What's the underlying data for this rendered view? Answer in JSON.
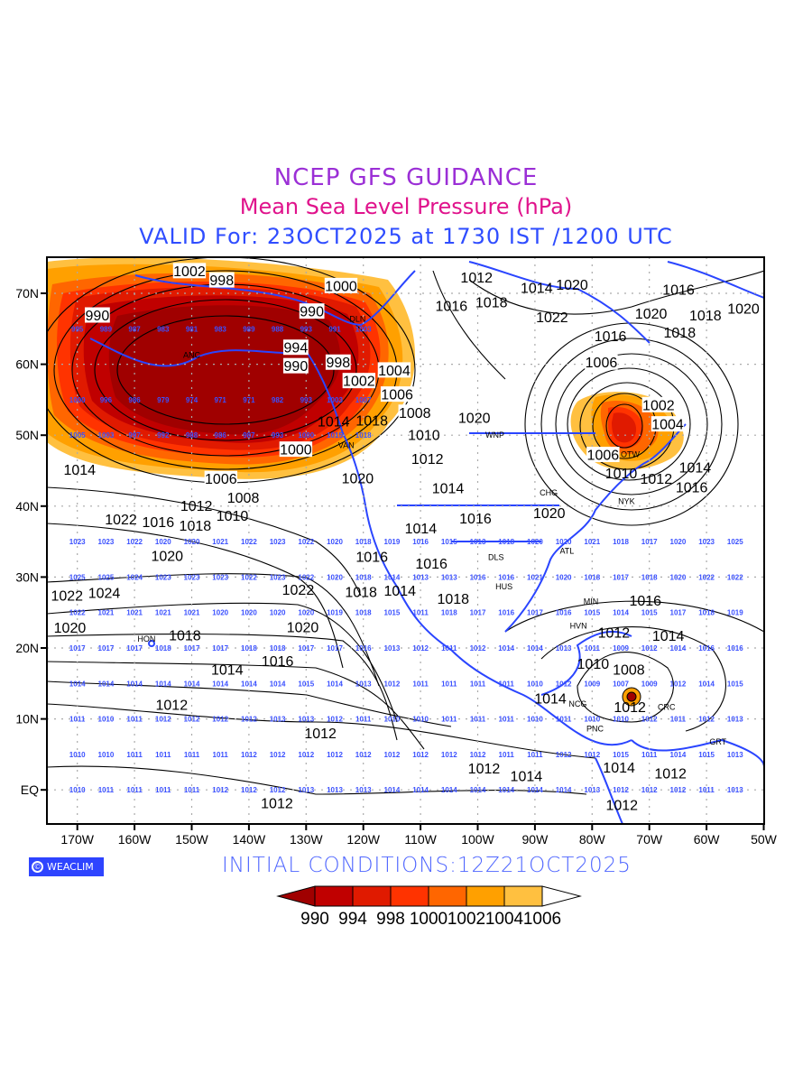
{
  "header": {
    "title": "NCEP GFS GUIDANCE",
    "subtitle": "Mean Sea Level Pressure (hPa)",
    "valid": "VALID For: 23OCT2025 at 1730 IST /1200 UTC"
  },
  "footer": {
    "logo": "WEACLIM",
    "copyright_symbol": "©",
    "initial": "INITIAL  CONDITIONS:12Z21OCT2025"
  },
  "legend": {
    "labels": [
      "990",
      "994",
      "998",
      "1000",
      "1002",
      "1004",
      "1006"
    ],
    "colors": [
      "#a00000",
      "#c00000",
      "#e01a00",
      "#ff3300",
      "#ff6600",
      "#ffa000",
      "#ffc040",
      "#ffffff"
    ]
  },
  "axes": {
    "lon_labels": [
      "170W",
      "160W",
      "150W",
      "140W",
      "130W",
      "120W",
      "110W",
      "100W",
      "90W",
      "80W",
      "70W",
      "60W",
      "50W"
    ],
    "lon_values": [
      -170,
      -160,
      -150,
      -140,
      -130,
      -120,
      -110,
      -100,
      -90,
      -80,
      -70,
      -60,
      -50
    ],
    "lat_labels": [
      "70N",
      "60N",
      "50N",
      "40N",
      "30N",
      "20N",
      "10N",
      "EQ"
    ],
    "lat_values": [
      70,
      60,
      50,
      40,
      30,
      20,
      10,
      0
    ]
  },
  "stations": [
    {
      "name": "ANC",
      "lon": -150,
      "lat": 61.3
    },
    {
      "name": "DLN",
      "lon": -121,
      "lat": 65.6
    },
    {
      "name": "VAN",
      "lon": -123,
      "lat": 49.3
    },
    {
      "name": "WNP",
      "lon": -97,
      "lat": 50
    },
    {
      "name": "OTW",
      "lon": -75.7,
      "lat": 45.4
    },
    {
      "name": "NYK",
      "lon": -74,
      "lat": 40.7
    },
    {
      "name": "CHG",
      "lon": -87.6,
      "lat": 41.9
    },
    {
      "name": "DLS",
      "lon": -96.8,
      "lat": 32.8
    },
    {
      "name": "HUS",
      "lon": -95.4,
      "lat": 29.8
    },
    {
      "name": "ATL",
      "lon": -84.4,
      "lat": 33.7
    },
    {
      "name": "MIN",
      "lon": -80.2,
      "lat": 25.8
    },
    {
      "name": "HVN",
      "lon": -82.4,
      "lat": 23.1
    },
    {
      "name": "HON",
      "lon": -157.9,
      "lat": 21.3
    },
    {
      "name": "NCG",
      "lon": -86.3,
      "lat": 12.1
    },
    {
      "name": "PNC",
      "lon": -79.5,
      "lat": 9
    },
    {
      "name": "CRC",
      "lon": -67,
      "lat": 10.5
    },
    {
      "name": "GRT",
      "lon": -58,
      "lat": 6.8
    }
  ],
  "contour_labels": [
    {
      "v": "1002",
      "lon": -150.4,
      "lat": 73.2
    },
    {
      "v": "998",
      "lon": -145.7,
      "lat": 71.9
    },
    {
      "v": "990",
      "lon": -166.5,
      "lat": 65.8
    },
    {
      "v": "1000",
      "lon": -123.9,
      "lat": 71.1
    },
    {
      "v": "990",
      "lon": -129,
      "lat": 67.5
    },
    {
      "v": "994",
      "lon": -131.8,
      "lat": 62.4
    },
    {
      "v": "990",
      "lon": -131.8,
      "lat": 59.8
    },
    {
      "v": "998",
      "lon": -124.4,
      "lat": 60.3
    },
    {
      "v": "1004",
      "lon": -114.6,
      "lat": 59.2
    },
    {
      "v": "1002",
      "lon": -118.4,
      "lat": 57.7
    },
    {
      "v": "1006",
      "lon": -114.1,
      "lat": 55.8
    },
    {
      "v": "1008",
      "lon": -111,
      "lat": 54
    },
    {
      "v": "1014",
      "lon": -125.2,
      "lat": 51.6
    },
    {
      "v": "1018",
      "lon": -118.5,
      "lat": 52.1
    },
    {
      "v": "1000",
      "lon": -131.8,
      "lat": 48.8
    },
    {
      "v": "1014",
      "lon": -169.6,
      "lat": 45.2
    },
    {
      "v": "1006",
      "lon": -144.9,
      "lat": 43.9
    },
    {
      "v": "1008",
      "lon": -141,
      "lat": 42.4
    },
    {
      "v": "1010",
      "lon": -142.9,
      "lat": 41.4
    },
    {
      "v": "1012",
      "lon": -145.4,
      "lat": 40.1
    },
    {
      "v": "1018",
      "lon": -147.5,
      "lat": 37.3
    },
    {
      "v": "1016",
      "lon": -153.5,
      "lat": 37.8
    },
    {
      "v": "1020",
      "lon": -154.3,
      "lat": 35.3
    },
    {
      "v": "1022",
      "lon": -156.7,
      "lat": 33.6
    },
    {
      "v": "1024",
      "lon": -165.3,
      "lat": 27.8
    },
    {
      "v": "1022",
      "lon": -173.7,
      "lat": 25.9
    },
    {
      "v": "1020",
      "lon": -171.3,
      "lat": 23.3
    },
    {
      "v": "1018",
      "lon": -151.2,
      "lat": 21.1
    },
    {
      "v": "1016",
      "lon": -135,
      "lat": 18.2
    },
    {
      "v": "1014",
      "lon": -143.8,
      "lat": 15.5
    },
    {
      "v": "1012",
      "lon": -153.5,
      "lat": 10.5
    },
    {
      "v": "1012",
      "lon": -127.5,
      "lat": 9.2
    },
    {
      "v": "1012",
      "lon": -135.1,
      "lat": -0.3
    },
    {
      "v": "1012",
      "lon": -98.9,
      "lat": 4.6
    },
    {
      "v": "1014",
      "lon": -93.4,
      "lat": 0.5
    },
    {
      "v": "1012",
      "lon": -74.8,
      "lat": -1.3
    },
    {
      "v": "1014",
      "lon": -75.3,
      "lat": 3.2
    },
    {
      "v": "1012",
      "lon": -66.3,
      "lat": 2.4
    },
    {
      "v": "1012",
      "lon": -73.4,
      "lat": 10.2
    },
    {
      "v": "1008",
      "lon": -73.6,
      "lat": 13.6
    },
    {
      "v": "1014",
      "lon": -87.3,
      "lat": 13.3
    },
    {
      "v": "1012",
      "lon": -76.2,
      "lat": 22.2
    },
    {
      "v": "1010",
      "lon": -77,
      "lat": 20.1
    },
    {
      "v": "1016",
      "lon": -70.7,
      "lat": 25.2
    },
    {
      "v": "1014",
      "lon": -66.7,
      "lat": 21
    },
    {
      "v": "1016",
      "lon": -62.6,
      "lat": 42.7
    },
    {
      "v": "1014",
      "lon": -62,
      "lat": 45.1
    },
    {
      "v": "1012",
      "lon": -68.8,
      "lat": 43.9
    },
    {
      "v": "1010",
      "lon": -73.5,
      "lat": 44.7
    },
    {
      "v": "1006",
      "lon": -78.1,
      "lat": 45
    },
    {
      "v": "1004",
      "lon": -66.8,
      "lat": 51.6
    },
    {
      "v": "1002",
      "lon": -68.4,
      "lat": 52.4
    },
    {
      "v": "1006",
      "lon": -78.4,
      "lat": 60.3
    },
    {
      "v": "1016",
      "lon": -76.8,
      "lat": 64
    },
    {
      "v": "1018",
      "lon": -64.7,
      "lat": 64.5
    },
    {
      "v": "1020",
      "lon": -69.7,
      "lat": 67.2
    },
    {
      "v": "1018",
      "lon": -60.2,
      "lat": 65.8
    },
    {
      "v": "1020",
      "lon": -52.6,
      "lat": 67.9
    },
    {
      "v": "1016",
      "lon": -64.9,
      "lat": 70.6
    },
    {
      "v": "1014",
      "lon": -89.7,
      "lat": 70.8
    },
    {
      "v": "1022",
      "lon": -87,
      "lat": 66.7
    },
    {
      "v": "1020",
      "lon": -87.3,
      "lat": 68.2
    },
    {
      "v": "1018",
      "lon": -97.6,
      "lat": 68.8
    },
    {
      "v": "1016",
      "lon": -104.6,
      "lat": 68.3
    },
    {
      "v": "1012",
      "lon": -100.2,
      "lat": 72.3
    },
    {
      "v": "1020",
      "lon": -100.6,
      "lat": 52.5
    },
    {
      "v": "1010",
      "lon": -109.4,
      "lat": 50.1
    },
    {
      "v": "1012",
      "lon": -108.8,
      "lat": 46.7
    },
    {
      "v": "1014",
      "lon": -105.2,
      "lat": 42.6
    },
    {
      "v": "1020",
      "lon": -121,
      "lat": 44
    },
    {
      "v": "1016",
      "lon": -100.4,
      "lat": 38.3
    },
    {
      "v": "1016",
      "lon": -118.5,
      "lat": 33.3
    },
    {
      "v": "1018",
      "lon": -120.4,
      "lat": 29.5
    },
    {
      "v": "1016",
      "lon": -108.1,
      "lat": 31.2
    },
    {
      "v": "1014",
      "lon": -113.6,
      "lat": 28.9
    },
    {
      "v": "1014",
      "lon": -105.7,
      "lat": 33.5
    },
    {
      "v": "1018",
      "lon": -104.3,
      "lat": 25.5
    },
    {
      "v": "1020",
      "lon": -130.6,
      "lat": 24.5
    },
    {
      "v": "1022",
      "lon": -131.4,
      "lat": 29.4
    },
    {
      "v": "1020",
      "lon": -87.5,
      "lat": 39.1
    }
  ],
  "grid_values": {
    "lons_note": "rows start at 170W, every 5 degrees",
    "rows": [
      {
        "lat": 65,
        "values": [
          995,
          989,
          987,
          983,
          981,
          983,
          989,
          988,
          993,
          991,
          1003
        ]
      },
      {
        "lat": 55,
        "values": [
          1000,
          996,
          986,
          979,
          974,
          971,
          971,
          982,
          993,
          1003,
          1007
        ]
      },
      {
        "lat": 50,
        "values": [
          1005,
          1003,
          997,
          992,
          988,
          986,
          987,
          993,
          1000,
          1015,
          1018
        ]
      },
      {
        "lat": 35,
        "values": [
          1023,
          1023,
          1022,
          1020,
          1020,
          1021,
          1022,
          1023,
          1022,
          1020,
          1018,
          1019,
          1016,
          1015,
          1013,
          1018,
          1020,
          1020,
          1021,
          1018,
          1017,
          1020,
          1023,
          1025
        ]
      },
      {
        "lat": 30,
        "values": [
          1025,
          1025,
          1024,
          1023,
          1023,
          1023,
          1022,
          1023,
          1022,
          1020,
          1018,
          1014,
          1013,
          1013,
          1016,
          1016,
          1021,
          1020,
          1018,
          1017,
          1018,
          1020,
          1022,
          1022
        ]
      },
      {
        "lat": 25,
        "values": [
          1022,
          1021,
          1021,
          1021,
          1021,
          1020,
          1020,
          1020,
          1020,
          1019,
          1018,
          1015,
          1011,
          1018,
          1017,
          1016,
          1017,
          1016,
          1015,
          1014,
          1015,
          1017,
          1018,
          1019
        ]
      },
      {
        "lat": 20,
        "values": [
          1017,
          1017,
          1017,
          1018,
          1017,
          1017,
          1018,
          1018,
          1017,
          1017,
          1016,
          1013,
          1012,
          1011,
          1012,
          1014,
          1014,
          1013,
          1011,
          1009,
          1012,
          1014,
          1016,
          1016
        ]
      },
      {
        "lat": 15,
        "values": [
          1014,
          1014,
          1014,
          1014,
          1014,
          1014,
          1014,
          1014,
          1015,
          1014,
          1013,
          1012,
          1011,
          1011,
          1011,
          1011,
          1010,
          1012,
          1009,
          1007,
          1009,
          1012,
          1014,
          1015
        ]
      },
      {
        "lat": 10,
        "values": [
          1011,
          1010,
          1011,
          1012,
          1012,
          1012,
          1012,
          1013,
          1013,
          1012,
          1011,
          1010,
          1010,
          1011,
          1011,
          1011,
          1010,
          1011,
          1010,
          1010,
          1012,
          1011,
          1012,
          1013
        ]
      },
      {
        "lat": 5,
        "values": [
          1010,
          1010,
          1011,
          1011,
          1011,
          1011,
          1012,
          1012,
          1012,
          1012,
          1012,
          1012,
          1012,
          1012,
          1012,
          1011,
          1011,
          1012,
          1012,
          1015,
          1011,
          1014,
          1015,
          1013
        ]
      },
      {
        "lat": 0,
        "values": [
          1010,
          1011,
          1011,
          1011,
          1011,
          1012,
          1012,
          1012,
          1013,
          1013,
          1013,
          1014,
          1014,
          1014,
          1014,
          1014,
          1014,
          1014,
          1013,
          1012,
          1012,
          1012,
          1011,
          1013
        ]
      }
    ]
  },
  "colors": {
    "coast": "#2a45ff",
    "contour": "#000000",
    "grid_text": "#3a50ff"
  }
}
